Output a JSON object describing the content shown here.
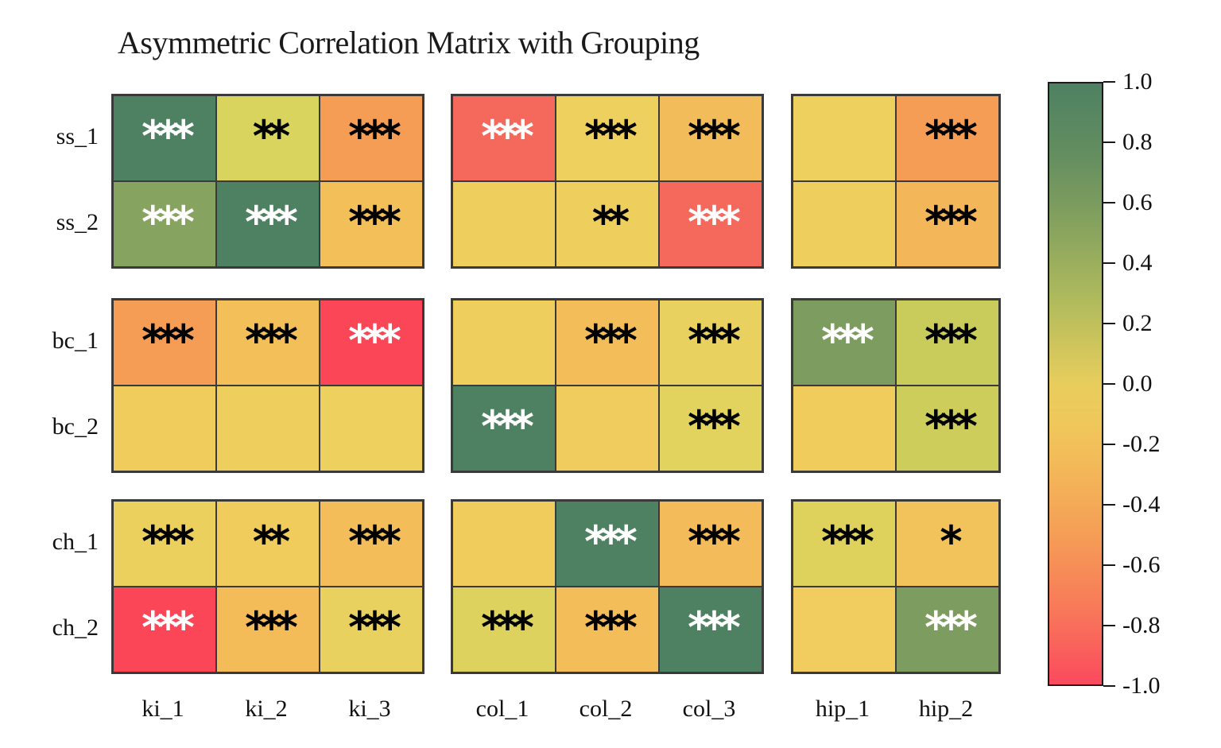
{
  "title": "Asymmetric Correlation Matrix with Grouping",
  "chart_data": {
    "type": "heatmap",
    "title": "Asymmetric Correlation Matrix with Grouping",
    "rows": [
      "ss_1",
      "ss_2",
      "bc_1",
      "bc_2",
      "ch_1",
      "ch_2"
    ],
    "cols": [
      "ki_1",
      "ki_2",
      "ki_3",
      "col_1",
      "col_2",
      "col_3",
      "hip_1",
      "hip_2"
    ],
    "row_groups": [
      "ss",
      "bc",
      "ch"
    ],
    "col_groups": [
      "ki",
      "col",
      "hip"
    ],
    "row_group_sizes": [
      2,
      2,
      2
    ],
    "col_group_sizes": [
      3,
      3,
      2
    ],
    "grid_border_color": "#3a3a3a",
    "cells": [
      [
        {
          "value": 0.95,
          "stars": "***",
          "color": "#4e8162",
          "star_color": "#ffffff"
        },
        {
          "value": 0.35,
          "stars": "**",
          "color": "#d8d45e",
          "star_color": "#000000"
        },
        {
          "value": -0.45,
          "stars": "***",
          "color": "#f59d55",
          "star_color": "#000000"
        },
        {
          "value": -0.75,
          "stars": "***",
          "color": "#f4695c",
          "star_color": "#ffffff"
        },
        {
          "value": 0.15,
          "stars": "***",
          "color": "#eed05e",
          "star_color": "#000000"
        },
        {
          "value": -0.15,
          "stars": "***",
          "color": "#f1bc59",
          "star_color": "#000000"
        },
        {
          "value": 0.15,
          "stars": "",
          "color": "#eed05e",
          "star_color": "#000000"
        },
        {
          "value": -0.45,
          "stars": "***",
          "color": "#f59d55",
          "star_color": "#000000"
        }
      ],
      [
        {
          "value": 0.65,
          "stars": "***",
          "color": "#86a35f",
          "star_color": "#ffffff"
        },
        {
          "value": 0.95,
          "stars": "***",
          "color": "#4e8162",
          "star_color": "#ffffff"
        },
        {
          "value": -0.12,
          "stars": "***",
          "color": "#f3bf59",
          "star_color": "#000000"
        },
        {
          "value": 0.15,
          "stars": "",
          "color": "#eecf5e",
          "star_color": "#000000"
        },
        {
          "value": 0.15,
          "stars": "**",
          "color": "#eecf5e",
          "star_color": "#000000"
        },
        {
          "value": -0.75,
          "stars": "***",
          "color": "#f4695c",
          "star_color": "#ffffff"
        },
        {
          "value": 0.15,
          "stars": "",
          "color": "#eecf5e",
          "star_color": "#000000"
        },
        {
          "value": -0.25,
          "stars": "***",
          "color": "#f3b659",
          "star_color": "#000000"
        }
      ],
      [
        {
          "value": -0.45,
          "stars": "***",
          "color": "#f59d55",
          "star_color": "#000000"
        },
        {
          "value": -0.12,
          "stars": "***",
          "color": "#f3bf59",
          "star_color": "#000000"
        },
        {
          "value": -0.95,
          "stars": "***",
          "color": "#fb4658",
          "star_color": "#ffffff"
        },
        {
          "value": 0.15,
          "stars": "",
          "color": "#eecf5e",
          "star_color": "#000000"
        },
        {
          "value": -0.15,
          "stars": "***",
          "color": "#f3bd59",
          "star_color": "#000000"
        },
        {
          "value": 0.25,
          "stars": "***",
          "color": "#e8d15e",
          "star_color": "#000000"
        },
        {
          "value": 0.7,
          "stars": "***",
          "color": "#7d9c5f",
          "star_color": "#ffffff"
        },
        {
          "value": 0.4,
          "stars": "***",
          "color": "#c9cb5b",
          "star_color": "#000000"
        }
      ],
      [
        {
          "value": 0.12,
          "stars": "",
          "color": "#f0cc5d",
          "star_color": "#000000"
        },
        {
          "value": 0.15,
          "stars": "",
          "color": "#eecf5e",
          "star_color": "#000000"
        },
        {
          "value": 0.15,
          "stars": "",
          "color": "#eed05e",
          "star_color": "#000000"
        },
        {
          "value": 0.95,
          "stars": "***",
          "color": "#4e8162",
          "star_color": "#ffffff"
        },
        {
          "value": 0.12,
          "stars": "",
          "color": "#f0cb5d",
          "star_color": "#000000"
        },
        {
          "value": 0.28,
          "stars": "***",
          "color": "#e2d25e",
          "star_color": "#000000"
        },
        {
          "value": 0.12,
          "stars": "",
          "color": "#f0cc5d",
          "star_color": "#000000"
        },
        {
          "value": 0.4,
          "stars": "***",
          "color": "#cdcd5b",
          "star_color": "#000000"
        }
      ],
      [
        {
          "value": 0.18,
          "stars": "***",
          "color": "#ecd05e",
          "star_color": "#000000"
        },
        {
          "value": 0.12,
          "stars": "**",
          "color": "#f0cc5d",
          "star_color": "#000000"
        },
        {
          "value": -0.15,
          "stars": "***",
          "color": "#f3bd59",
          "star_color": "#000000"
        },
        {
          "value": 0.12,
          "stars": "",
          "color": "#f0cc5d",
          "star_color": "#000000"
        },
        {
          "value": 0.95,
          "stars": "***",
          "color": "#4e8162",
          "star_color": "#ffffff"
        },
        {
          "value": -0.15,
          "stars": "***",
          "color": "#f3bb59",
          "star_color": "#000000"
        },
        {
          "value": 0.3,
          "stars": "***",
          "color": "#ded25d",
          "star_color": "#000000"
        },
        {
          "value": -0.05,
          "stars": "*",
          "color": "#f2c35b",
          "star_color": "#000000"
        }
      ],
      [
        {
          "value": -0.95,
          "stars": "***",
          "color": "#fb4658",
          "star_color": "#ffffff"
        },
        {
          "value": -0.15,
          "stars": "***",
          "color": "#f4bb59",
          "star_color": "#000000"
        },
        {
          "value": 0.25,
          "stars": "***",
          "color": "#e8d15e",
          "star_color": "#000000"
        },
        {
          "value": 0.3,
          "stars": "***",
          "color": "#dcd25d",
          "star_color": "#000000"
        },
        {
          "value": -0.15,
          "stars": "***",
          "color": "#f3bd59",
          "star_color": "#000000"
        },
        {
          "value": 0.95,
          "stars": "***",
          "color": "#4e8162",
          "star_color": "#ffffff"
        },
        {
          "value": 0.12,
          "stars": "",
          "color": "#f0cd5e",
          "star_color": "#000000"
        },
        {
          "value": 0.7,
          "stars": "***",
          "color": "#7d9c5f",
          "star_color": "#ffffff"
        }
      ]
    ],
    "colorbar": {
      "min": -1.0,
      "max": 1.0,
      "tick_labels": [
        "1.0",
        "0.8",
        "0.6",
        "0.4",
        "0.2",
        "0.0",
        "-0.2",
        "-0.4",
        "-0.6",
        "-0.8",
        "-1.0"
      ],
      "gradient": [
        {
          "pos": 0,
          "color": "#4e8162"
        },
        {
          "pos": 12,
          "color": "#648e60"
        },
        {
          "pos": 25,
          "color": "#8aa55e"
        },
        {
          "pos": 37,
          "color": "#b3bc5c"
        },
        {
          "pos": 50,
          "color": "#e8cd5d"
        },
        {
          "pos": 57,
          "color": "#f0c75b"
        },
        {
          "pos": 63,
          "color": "#f3ba59"
        },
        {
          "pos": 75,
          "color": "#f59e56"
        },
        {
          "pos": 87,
          "color": "#f87a59"
        },
        {
          "pos": 100,
          "color": "#fb4a5e"
        }
      ]
    }
  }
}
